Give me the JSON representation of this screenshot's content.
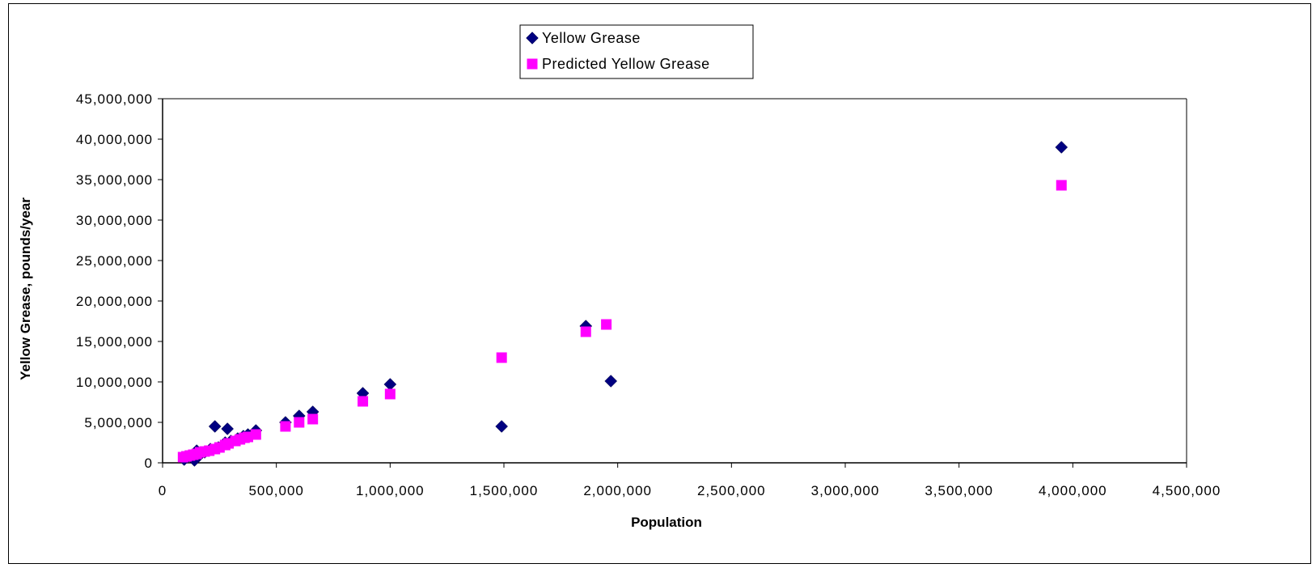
{
  "chart_data": {
    "type": "scatter",
    "xlabel": "Population",
    "ylabel": "Yellow Grease, pounds/year",
    "xlim": [
      0,
      4500000
    ],
    "ylim": [
      0,
      45000000
    ],
    "x_ticks": [
      0,
      500000,
      1000000,
      1500000,
      2000000,
      2500000,
      3000000,
      3500000,
      4000000,
      4500000
    ],
    "x_tick_labels": [
      "0",
      "500,000",
      "1,000,000",
      "1,500,000",
      "2,000,000",
      "2,500,000",
      "3,000,000",
      "3,500,000",
      "4,000,000",
      "4,500,000"
    ],
    "y_ticks": [
      0,
      5000000,
      10000000,
      15000000,
      20000000,
      25000000,
      30000000,
      35000000,
      40000000,
      45000000
    ],
    "y_tick_labels": [
      "0",
      "5,000,000",
      "10,000,000",
      "15,000,000",
      "20,000,000",
      "25,000,000",
      "30,000,000",
      "35,000,000",
      "40,000,000",
      "45,000,000"
    ],
    "grid": false,
    "legend": "top-center",
    "series": [
      {
        "name": "Yellow Grease",
        "marker": "diamond",
        "color": "#000080",
        "points": [
          [
            95000,
            400000
          ],
          [
            110000,
            700000
          ],
          [
            125000,
            900000
          ],
          [
            140000,
            300000
          ],
          [
            150000,
            1500000
          ],
          [
            165000,
            1000000
          ],
          [
            185000,
            1300000
          ],
          [
            210000,
            1700000
          ],
          [
            230000,
            4500000
          ],
          [
            245000,
            1900000
          ],
          [
            275000,
            2500000
          ],
          [
            285000,
            4200000
          ],
          [
            300000,
            2700000
          ],
          [
            330000,
            3000000
          ],
          [
            355000,
            3300000
          ],
          [
            375000,
            3500000
          ],
          [
            410000,
            4000000
          ],
          [
            540000,
            5000000
          ],
          [
            600000,
            5800000
          ],
          [
            660000,
            6300000
          ],
          [
            880000,
            8600000
          ],
          [
            1000000,
            9700000
          ],
          [
            1490000,
            4500000
          ],
          [
            1860000,
            16900000
          ],
          [
            1970000,
            10100000
          ],
          [
            3950000,
            39000000
          ]
        ]
      },
      {
        "name": "Predicted Yellow Grease",
        "marker": "square",
        "color": "#ff00ff",
        "points": [
          [
            90000,
            700000
          ],
          [
            105000,
            800000
          ],
          [
            120000,
            900000
          ],
          [
            135000,
            1000000
          ],
          [
            150000,
            1100000
          ],
          [
            165000,
            1300000
          ],
          [
            185000,
            1400000
          ],
          [
            205000,
            1500000
          ],
          [
            230000,
            1700000
          ],
          [
            250000,
            1900000
          ],
          [
            275000,
            2200000
          ],
          [
            290000,
            2400000
          ],
          [
            320000,
            2700000
          ],
          [
            340000,
            2900000
          ],
          [
            360000,
            3100000
          ],
          [
            375000,
            3200000
          ],
          [
            410000,
            3500000
          ],
          [
            540000,
            4500000
          ],
          [
            600000,
            5000000
          ],
          [
            660000,
            5400000
          ],
          [
            880000,
            7600000
          ],
          [
            1000000,
            8500000
          ],
          [
            1490000,
            13000000
          ],
          [
            1860000,
            16200000
          ],
          [
            1950000,
            17100000
          ],
          [
            3950000,
            34300000
          ]
        ]
      }
    ]
  }
}
